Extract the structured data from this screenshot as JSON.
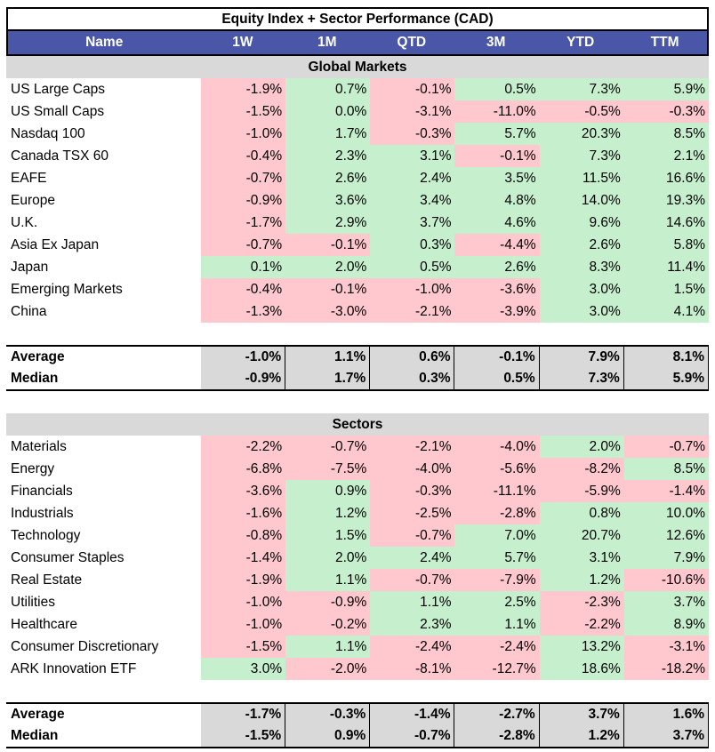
{
  "title": "Equity Index + Sector Performance (CAD)",
  "columns": [
    "Name",
    "1W",
    "1M",
    "QTD",
    "3M",
    "YTD",
    "TTM"
  ],
  "colors": {
    "header": "#4a56a8",
    "positive": "#c6efce",
    "negative": "#ffc7ce",
    "section": "#d9d9d9"
  },
  "global": {
    "label": "Global Markets",
    "rows": [
      {
        "name": "US Large Caps",
        "values": [
          "-1.9%",
          "0.7%",
          "-0.1%",
          "0.5%",
          "7.3%",
          "5.9%"
        ]
      },
      {
        "name": "US Small Caps",
        "values": [
          "-1.5%",
          "0.0%",
          "-3.1%",
          "-11.0%",
          "-0.5%",
          "-0.3%"
        ]
      },
      {
        "name": "Nasdaq 100",
        "values": [
          "-1.0%",
          "1.7%",
          "-0.3%",
          "5.7%",
          "20.3%",
          "8.5%"
        ]
      },
      {
        "name": "Canada TSX 60",
        "values": [
          "-0.4%",
          "2.3%",
          "3.1%",
          "-0.1%",
          "7.3%",
          "2.1%"
        ]
      },
      {
        "name": "EAFE",
        "values": [
          "-0.7%",
          "2.6%",
          "2.4%",
          "3.5%",
          "11.5%",
          "16.6%"
        ]
      },
      {
        "name": "Europe",
        "values": [
          "-0.9%",
          "3.6%",
          "3.4%",
          "4.8%",
          "14.0%",
          "19.3%"
        ]
      },
      {
        "name": "U.K.",
        "values": [
          "-1.7%",
          "2.9%",
          "3.7%",
          "4.6%",
          "9.6%",
          "14.6%"
        ]
      },
      {
        "name": "Asia Ex Japan",
        "values": [
          "-0.7%",
          "-0.1%",
          "0.3%",
          "-4.4%",
          "2.6%",
          "5.8%"
        ]
      },
      {
        "name": "Japan",
        "values": [
          "0.1%",
          "2.0%",
          "0.5%",
          "2.6%",
          "8.3%",
          "11.4%"
        ]
      },
      {
        "name": "Emerging Markets",
        "values": [
          "-0.4%",
          "-0.1%",
          "-1.0%",
          "-3.6%",
          "3.0%",
          "1.5%"
        ]
      },
      {
        "name": "China",
        "values": [
          "-1.3%",
          "-3.0%",
          "-2.1%",
          "-3.9%",
          "3.0%",
          "4.1%"
        ]
      }
    ],
    "stats": [
      {
        "name": "Average",
        "values": [
          "-1.0%",
          "1.1%",
          "0.6%",
          "-0.1%",
          "7.9%",
          "8.1%"
        ]
      },
      {
        "name": "Median",
        "values": [
          "-0.9%",
          "1.7%",
          "0.3%",
          "0.5%",
          "7.3%",
          "5.9%"
        ]
      }
    ]
  },
  "sectors": {
    "label": "Sectors",
    "rows": [
      {
        "name": "Materials",
        "values": [
          "-2.2%",
          "-0.7%",
          "-2.1%",
          "-4.0%",
          "2.0%",
          "-0.7%"
        ]
      },
      {
        "name": "Energy",
        "values": [
          "-6.8%",
          "-7.5%",
          "-4.0%",
          "-5.6%",
          "-8.2%",
          "8.5%"
        ]
      },
      {
        "name": "Financials",
        "values": [
          "-3.6%",
          "0.9%",
          "-0.3%",
          "-11.1%",
          "-5.9%",
          "-1.4%"
        ]
      },
      {
        "name": "Industrials",
        "values": [
          "-1.6%",
          "1.2%",
          "-2.5%",
          "-2.8%",
          "0.8%",
          "10.0%"
        ]
      },
      {
        "name": "Technology",
        "values": [
          "-0.8%",
          "1.5%",
          "-0.7%",
          "7.0%",
          "20.7%",
          "12.6%"
        ]
      },
      {
        "name": "Consumer Staples",
        "values": [
          "-1.4%",
          "2.0%",
          "2.4%",
          "5.7%",
          "3.1%",
          "7.9%"
        ]
      },
      {
        "name": "Real Estate",
        "values": [
          "-1.9%",
          "1.1%",
          "-0.7%",
          "-7.9%",
          "1.2%",
          "-10.6%"
        ]
      },
      {
        "name": "Utilities",
        "values": [
          "-1.0%",
          "-0.9%",
          "1.1%",
          "2.5%",
          "-2.3%",
          "3.7%"
        ]
      },
      {
        "name": "Healthcare",
        "values": [
          "-1.0%",
          "-0.2%",
          "2.3%",
          "1.1%",
          "-2.2%",
          "8.9%"
        ]
      },
      {
        "name": "Consumer Discretionary",
        "values": [
          "-1.5%",
          "1.1%",
          "-2.4%",
          "-2.4%",
          "13.2%",
          "-3.1%"
        ]
      },
      {
        "name": "ARK Innovation ETF",
        "values": [
          "3.0%",
          "-2.0%",
          "-8.1%",
          "-12.7%",
          "18.6%",
          "-18.2%"
        ]
      }
    ],
    "stats": [
      {
        "name": "Average",
        "values": [
          "-1.7%",
          "-0.3%",
          "-1.4%",
          "-2.7%",
          "3.7%",
          "1.6%"
        ]
      },
      {
        "name": "Median",
        "values": [
          "-1.5%",
          "0.9%",
          "-0.7%",
          "-2.8%",
          "1.2%",
          "3.7%"
        ]
      }
    ]
  }
}
